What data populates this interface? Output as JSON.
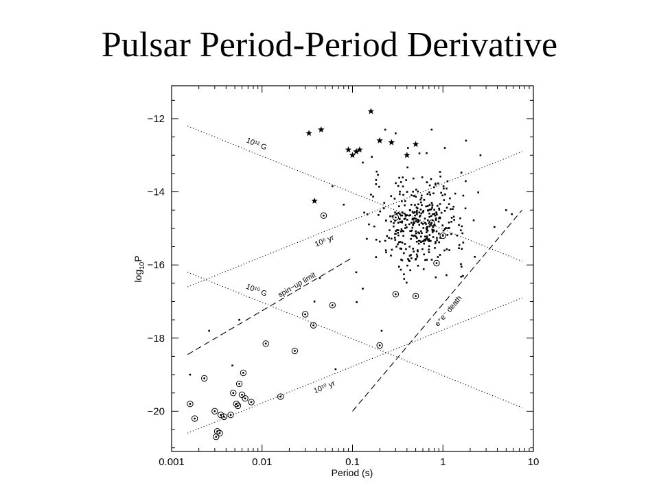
{
  "slide": {
    "title": "Pulsar Period-Period Derivative"
  },
  "chart_data": {
    "type": "scatter",
    "title": "Pulsar Period-Period Derivative",
    "xlabel": "Period (s)",
    "ylabel_main": "log",
    "ylabel_sub": "10",
    "ylabel_tail": "P",
    "xscale": "log",
    "xlim": [
      0.001,
      10
    ],
    "ylim": [
      -21.1,
      -11.1
    ],
    "x_ticks": [
      {
        "value": 0.001,
        "label": "0.001"
      },
      {
        "value": 0.01,
        "label": "0.01"
      },
      {
        "value": 0.1,
        "label": "0.1"
      },
      {
        "value": 1,
        "label": "1"
      },
      {
        "value": 10,
        "label": "10"
      }
    ],
    "y_ticks": [
      {
        "value": -12,
        "label": "−12"
      },
      {
        "value": -14,
        "label": "−14"
      },
      {
        "value": -16,
        "label": "−16"
      },
      {
        "value": -18,
        "label": "−18"
      },
      {
        "value": -20,
        "label": "−20"
      }
    ],
    "lines": [
      {
        "label": "10¹² G",
        "style": "dotted",
        "x": [
          0.0015,
          7.5
        ],
        "y": [
          -12.2,
          -15.9
        ],
        "label_pos": {
          "x": 0.0085,
          "y": -12.75
        }
      },
      {
        "label": "10¹⁰ G",
        "style": "dotted",
        "x": [
          0.0015,
          7.5
        ],
        "y": [
          -16.2,
          -19.9
        ],
        "label_pos": {
          "x": 0.0085,
          "y": -16.75
        }
      },
      {
        "label": "10⁶ yr",
        "style": "dotted",
        "x": [
          0.0015,
          7.5
        ],
        "y": [
          -16.6,
          -12.9
        ],
        "label_pos": {
          "x": 0.05,
          "y": -15.4
        }
      },
      {
        "label": "10¹⁰ yr",
        "style": "dotted",
        "x": [
          0.0015,
          7.5
        ],
        "y": [
          -20.6,
          -16.9
        ],
        "label_pos": {
          "x": 0.05,
          "y": -19.4
        }
      },
      {
        "label": "spin−up limit",
        "style": "dashed",
        "x": [
          0.0015,
          0.1
        ],
        "y": [
          -18.45,
          -15.8
        ],
        "label_pos": {
          "x": 0.025,
          "y": -16.6
        }
      },
      {
        "label": "e⁺e⁻ death",
        "style": "dashed",
        "x": [
          0.1,
          7.5
        ],
        "y": [
          -20.0,
          -14.5
        ],
        "label_pos": {
          "x": 1.2,
          "y": -17.3
        }
      }
    ],
    "series": [
      {
        "marker": "star",
        "points": [
          [
            0.033,
            -12.4
          ],
          [
            0.045,
            -12.3
          ],
          [
            0.09,
            -12.85
          ],
          [
            0.11,
            -12.9
          ],
          [
            0.12,
            -12.85
          ],
          [
            0.16,
            -11.8
          ],
          [
            0.2,
            -12.6
          ],
          [
            0.27,
            -12.65
          ],
          [
            0.5,
            -12.7
          ],
          [
            0.038,
            -14.25
          ],
          [
            0.1,
            -13.0
          ],
          [
            0.4,
            -13.0
          ]
        ]
      },
      {
        "marker": "circled",
        "points": [
          [
            0.0016,
            -19.8
          ],
          [
            0.0018,
            -20.2
          ],
          [
            0.0023,
            -19.1
          ],
          [
            0.003,
            -20.0
          ],
          [
            0.0031,
            -20.7
          ],
          [
            0.0032,
            -20.55
          ],
          [
            0.0034,
            -20.6
          ],
          [
            0.0035,
            -20.1
          ],
          [
            0.0038,
            -20.15
          ],
          [
            0.0045,
            -20.1
          ],
          [
            0.0048,
            -19.5
          ],
          [
            0.0052,
            -19.8
          ],
          [
            0.0054,
            -19.85
          ],
          [
            0.0056,
            -19.25
          ],
          [
            0.006,
            -19.55
          ],
          [
            0.0062,
            -18.95
          ],
          [
            0.0065,
            -19.65
          ],
          [
            0.0076,
            -19.75
          ],
          [
            0.011,
            -18.15
          ],
          [
            0.016,
            -19.6
          ],
          [
            0.023,
            -18.35
          ],
          [
            0.03,
            -17.35
          ],
          [
            0.037,
            -17.65
          ],
          [
            0.048,
            -14.65
          ],
          [
            0.06,
            -17.1
          ],
          [
            0.2,
            -18.2
          ],
          [
            0.3,
            -16.8
          ],
          [
            0.5,
            -16.85
          ],
          [
            0.85,
            -15.95
          ],
          [
            0.3,
            -14.7
          ],
          [
            0.75,
            -14.85
          ],
          [
            1.0,
            -15.2
          ]
        ]
      },
      {
        "marker": "dot",
        "points": [
          [
            0.0016,
            -19.0
          ],
          [
            0.0026,
            -17.8
          ],
          [
            0.0047,
            -18.75
          ],
          [
            0.0056,
            -17.5
          ],
          [
            0.038,
            -17.0
          ],
          [
            0.065,
            -18.85
          ],
          [
            0.11,
            -16.2
          ],
          [
            0.13,
            -16.65
          ],
          [
            0.21,
            -17.8
          ],
          [
            0.06,
            -13.85
          ],
          [
            0.08,
            -14.35
          ],
          [
            0.13,
            -13.2
          ],
          [
            0.23,
            -12.3
          ],
          [
            0.3,
            -12.4
          ],
          [
            0.55,
            -12.95
          ],
          [
            0.75,
            -12.3
          ],
          [
            1.05,
            -12.8
          ],
          [
            1.8,
            -12.6
          ],
          [
            2.6,
            -13.0
          ],
          [
            5.0,
            -14.5
          ]
        ],
        "cloud": {
          "count": 380,
          "x_log_mean": -0.25,
          "x_log_sd": 0.26,
          "y_mean": -14.85,
          "y_sd": 0.62,
          "seed": 7
        }
      }
    ]
  }
}
